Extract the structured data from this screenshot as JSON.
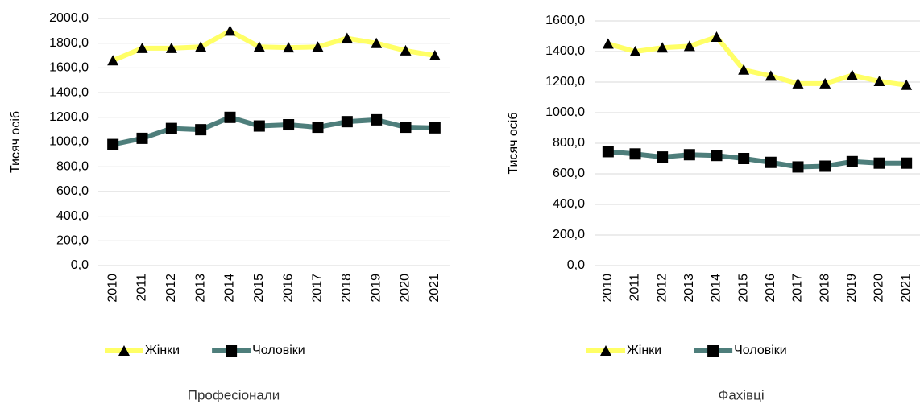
{
  "chart_data": [
    {
      "type": "line",
      "title": "Професіонали",
      "y_label": "Тисяч осіб",
      "categories": [
        "2010",
        "2011",
        "2012",
        "2013",
        "2014",
        "2015",
        "2016",
        "2017",
        "2018",
        "2019",
        "2020",
        "2021"
      ],
      "series": [
        {
          "name": "Жінки",
          "color": "#ffff66",
          "marker": "triangle",
          "values": [
            1660,
            1760,
            1760,
            1770,
            1900,
            1770,
            1765,
            1770,
            1840,
            1800,
            1740,
            1700
          ]
        },
        {
          "name": "Чоловіки",
          "color": "#4e7e7b",
          "marker": "square",
          "values": [
            980,
            1030,
            1110,
            1100,
            1200,
            1130,
            1140,
            1120,
            1165,
            1180,
            1120,
            1115
          ]
        }
      ],
      "ylim": [
        0,
        2000
      ],
      "yticks": [
        {
          "value": 0,
          "label": "0,0"
        },
        {
          "value": 200,
          "label": "200,0"
        },
        {
          "value": 400,
          "label": "400,0"
        },
        {
          "value": 600,
          "label": "600,0"
        },
        {
          "value": 800,
          "label": "800,0"
        },
        {
          "value": 1000,
          "label": "1000,0"
        },
        {
          "value": 1200,
          "label": "1200,0"
        },
        {
          "value": 1400,
          "label": "1400,0"
        },
        {
          "value": 1600,
          "label": "1600,0"
        },
        {
          "value": 1800,
          "label": "1800,0"
        },
        {
          "value": 2000,
          "label": "2000,0"
        }
      ],
      "grid": true,
      "legend": "bottom"
    },
    {
      "type": "line",
      "title": "Фахівці",
      "y_label": "Тисяч осіб",
      "categories": [
        "2010",
        "2011",
        "2012",
        "2013",
        "2014",
        "2015",
        "2016",
        "2017",
        "2018",
        "2019",
        "2020",
        "2021"
      ],
      "series": [
        {
          "name": "Жінки",
          "color": "#ffff66",
          "marker": "triangle",
          "values": [
            1450,
            1400,
            1425,
            1435,
            1495,
            1280,
            1240,
            1190,
            1190,
            1245,
            1205,
            1180
          ]
        },
        {
          "name": "Чоловіки",
          "color": "#4e7e7b",
          "marker": "square",
          "values": [
            745,
            730,
            710,
            725,
            720,
            700,
            675,
            645,
            650,
            680,
            670,
            670
          ]
        }
      ],
      "ylim": [
        0,
        1600
      ],
      "yticks": [
        {
          "value": 0,
          "label": "0,0"
        },
        {
          "value": 200,
          "label": "200,0"
        },
        {
          "value": 400,
          "label": "400,0"
        },
        {
          "value": 600,
          "label": "600,0"
        },
        {
          "value": 800,
          "label": "800,0"
        },
        {
          "value": 1000,
          "label": "1000,0"
        },
        {
          "value": 1200,
          "label": "1200,0"
        },
        {
          "value": 1400,
          "label": "1400,0"
        },
        {
          "value": 1600,
          "label": "1600,0"
        }
      ],
      "grid": true,
      "legend": "bottom"
    }
  ]
}
